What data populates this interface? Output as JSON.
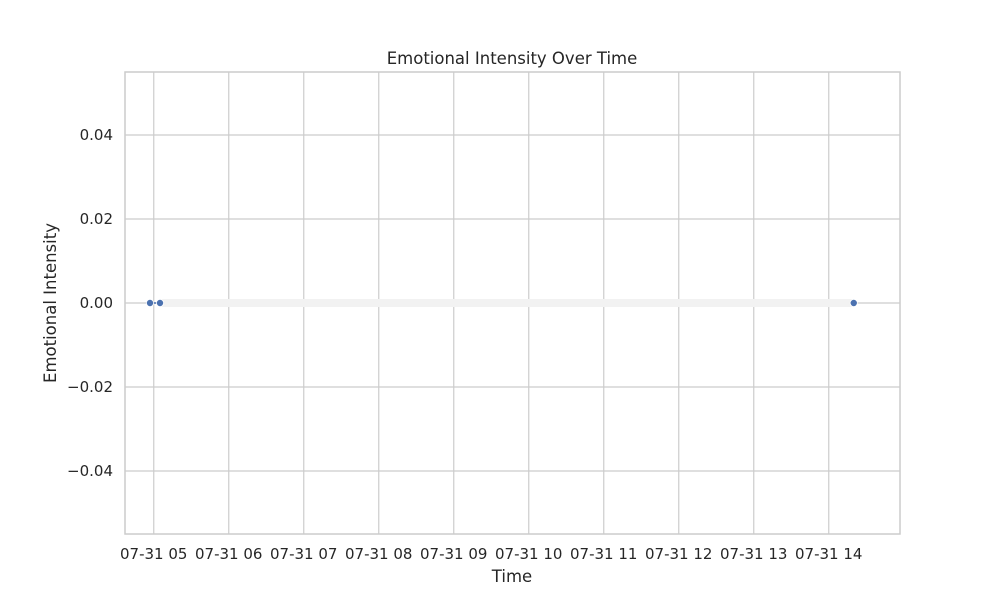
{
  "chart_data": {
    "type": "line",
    "title": "Emotional Intensity Over Time",
    "xlabel": "Time",
    "ylabel": "Emotional Intensity",
    "x_ticks": [
      "07-31 05",
      "07-31 06",
      "07-31 07",
      "07-31 08",
      "07-31 09",
      "07-31 10",
      "07-31 11",
      "07-31 12",
      "07-31 13",
      "07-31 14"
    ],
    "y_ticks": [
      "0.04",
      "0.02",
      "0.00",
      "−0.02",
      "−0.04"
    ],
    "ylim": [
      -0.055,
      0.055
    ],
    "xlim": [
      "07-31 04:37",
      "07-31 14:57"
    ],
    "grid": true,
    "series": [
      {
        "color": "#4c72b0",
        "band_color": "#f2f2f2",
        "points": [
          {
            "x": "07-31 04:57",
            "y": 0
          },
          {
            "x": "07-31 05:05",
            "y": 0
          },
          {
            "x": "07-31 14:20",
            "y": 0
          }
        ]
      }
    ]
  }
}
